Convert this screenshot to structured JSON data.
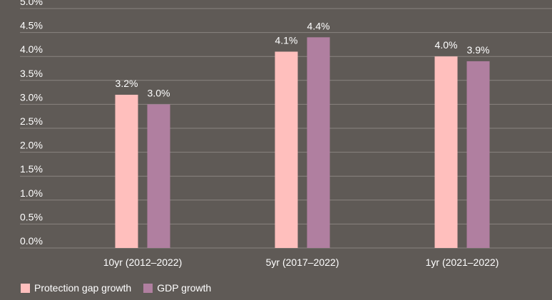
{
  "chart_data": {
    "type": "bar",
    "categories": [
      "10yr (2012–2022)",
      "5yr (2017–2022)",
      "1yr (2021–2022)"
    ],
    "series": [
      {
        "name": "Protection gap growth",
        "values": [
          3.2,
          4.1,
          4.0
        ],
        "color": "#ffbfbd",
        "labels": [
          "3.2%",
          "4.1%",
          "4.0%"
        ]
      },
      {
        "name": "GDP growth",
        "values": [
          3.0,
          4.4,
          3.9
        ],
        "color": "#b07fa0",
        "labels": [
          "3.0%",
          "4.4%",
          "3.9%"
        ]
      }
    ],
    "ylim": [
      0,
      5
    ],
    "yticks": [
      "0.0%",
      "0.5%",
      "1.0%",
      "1.5%",
      "2.0%",
      "2.5%",
      "3.0%",
      "3.5%",
      "4.0%",
      "4.5%",
      "5.0%"
    ],
    "grid": true,
    "legend_position": "bottom-left",
    "title": "",
    "xlabel": "",
    "ylabel": ""
  },
  "colors": {
    "background": "#5f5a56",
    "gridline": "#8a8480",
    "text": "#ffffff"
  }
}
